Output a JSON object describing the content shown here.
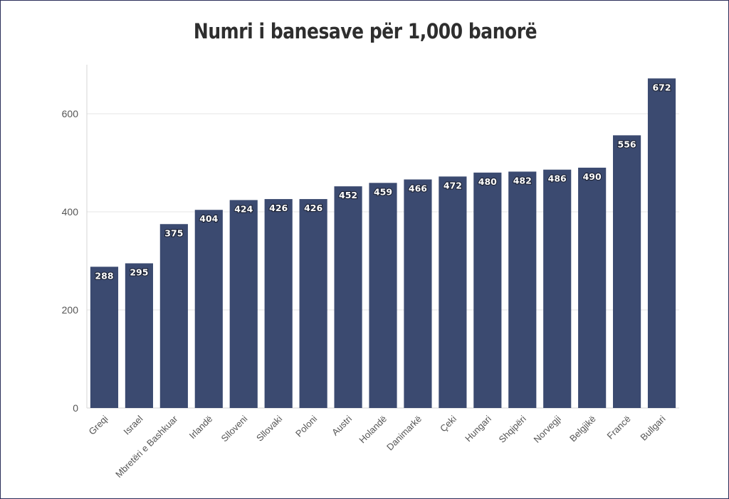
{
  "chart_data": {
    "type": "bar",
    "title": "Numri i banesave për 1,000 banorë",
    "categories": [
      "Greqi",
      "Israel",
      "Mbretëri e Bashkuar",
      "Irlandë",
      "Slloveni",
      "Sllovaki",
      "Poloni",
      "Austri",
      "Holandë",
      "Danimarkë",
      "Çeki",
      "Hungari",
      "Shqipëri",
      "Norvegji",
      "Belgjikë",
      "Francë",
      "Bullgari"
    ],
    "values": [
      288,
      295,
      375,
      404,
      424,
      426,
      426,
      452,
      459,
      466,
      472,
      480,
      482,
      486,
      490,
      556,
      672
    ],
    "ylim": [
      0,
      700
    ],
    "yticks": [
      0,
      200,
      400,
      600
    ],
    "grid": true,
    "bar_color": "#3b4a70",
    "data_labels": true
  }
}
